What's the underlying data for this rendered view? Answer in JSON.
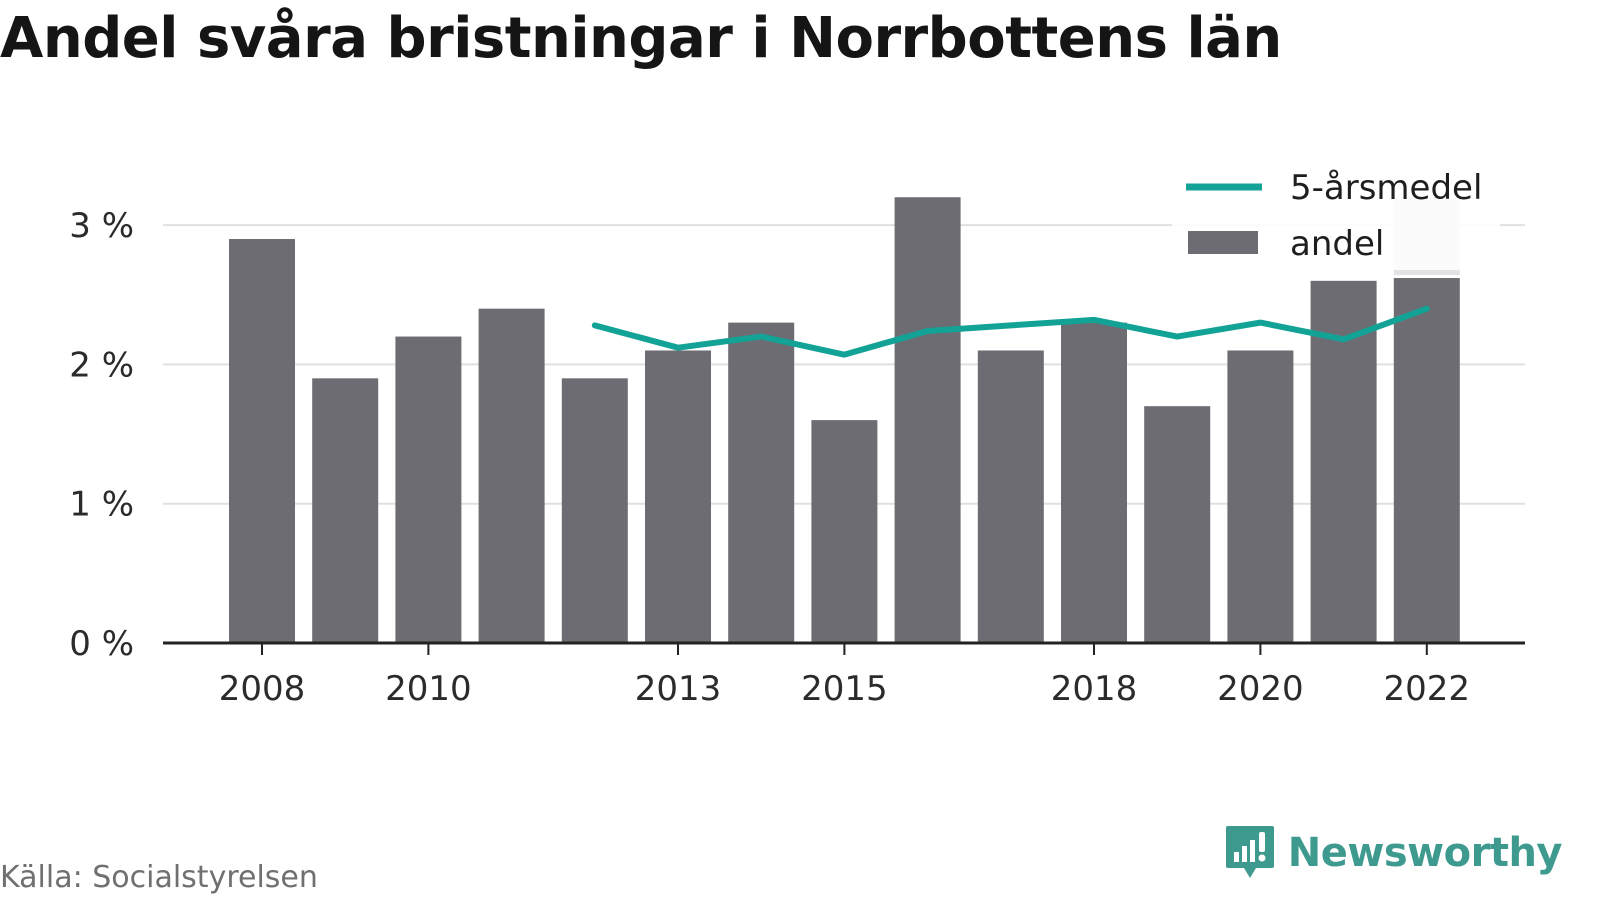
{
  "title": "Andel svåra bristningar i Norrbottens län",
  "source": "Källa: Socialstyrelsen",
  "brand": {
    "name": "Newsworthy",
    "color": "#3e9a8f",
    "icon": "newsworthy-logo-icon"
  },
  "legend": {
    "placement": "top-right",
    "line_label": "5-årsmedel",
    "bar_label": "andel"
  },
  "colors": {
    "bar": "#6d6c73",
    "bar_highlight": "#e3e3e5",
    "line": "#12a396",
    "grid": "#e0e0e0",
    "axis": "#222222"
  },
  "chart_data": {
    "type": "bar",
    "title": "Andel svåra bristningar i Norrbottens län",
    "xlabel": "",
    "ylabel": "",
    "x": [
      2008,
      2009,
      2010,
      2011,
      2012,
      2013,
      2014,
      2015,
      2016,
      2017,
      2018,
      2019,
      2020,
      2021,
      2022
    ],
    "x_tick_labels": [
      "2008",
      "2010",
      "2013",
      "2015",
      "2018",
      "2020",
      "2022"
    ],
    "y_ticks": [
      0,
      1,
      2,
      3
    ],
    "y_tick_labels": [
      "0 %",
      "1 %",
      "2 %",
      "3 %"
    ],
    "ylim": [
      0,
      3.3
    ],
    "grid": true,
    "series": [
      {
        "name": "andel",
        "type": "bar",
        "values": [
          2.9,
          1.9,
          2.2,
          2.4,
          1.9,
          2.1,
          2.3,
          1.6,
          3.2,
          2.1,
          2.3,
          1.7,
          2.1,
          2.6,
          2.62
        ]
      },
      {
        "name": "5-årsmedel",
        "type": "line",
        "values": [
          null,
          null,
          null,
          null,
          2.28,
          2.12,
          2.2,
          2.07,
          2.24,
          2.28,
          2.32,
          2.2,
          2.3,
          2.18,
          2.4
        ]
      }
    ],
    "highlight": {
      "x": 2022,
      "top": 3.2
    }
  }
}
